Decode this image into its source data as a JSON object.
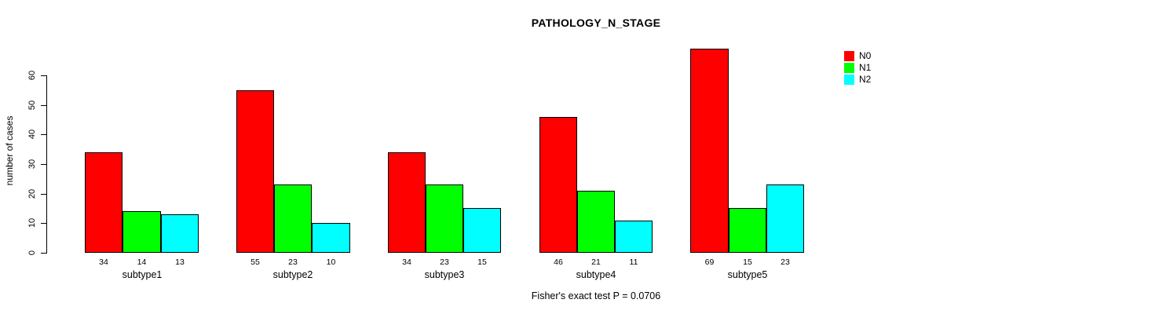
{
  "chart_data": {
    "type": "bar",
    "title": "PATHOLOGY_N_STAGE",
    "ylabel": "number of cases",
    "xlabel": "",
    "caption": "Fisher's exact test P = 0.0706",
    "categories": [
      "subtype1",
      "subtype2",
      "subtype3",
      "subtype4",
      "subtype5"
    ],
    "series": [
      {
        "name": "N0",
        "color": "#FF0000",
        "values": [
          34,
          55,
          34,
          46,
          69
        ]
      },
      {
        "name": "N1",
        "color": "#00FF00",
        "values": [
          14,
          23,
          23,
          21,
          15
        ]
      },
      {
        "name": "N2",
        "color": "#00FFFF",
        "values": [
          13,
          10,
          15,
          11,
          23
        ]
      }
    ],
    "bar_value_labels": [
      [
        "34",
        "14",
        "13"
      ],
      [
        "55",
        "23",
        "10"
      ],
      [
        "34",
        "23",
        "15"
      ],
      [
        "46",
        "21",
        "11"
      ],
      [
        "69",
        "15",
        "23"
      ]
    ],
    "y_ticks": [
      0,
      10,
      20,
      30,
      40,
      50,
      60
    ],
    "ylim": [
      0,
      60
    ],
    "grid": false,
    "legend_position": "top-right",
    "legend_entries": [
      {
        "label": "N0",
        "color": "#FF0000"
      },
      {
        "label": "N1",
        "color": "#00FF00"
      },
      {
        "label": "N2",
        "color": "#00FFFF"
      }
    ],
    "colors": {
      "bar_border": "#000000",
      "axis": "#000000",
      "background": "#FFFFFF"
    }
  }
}
